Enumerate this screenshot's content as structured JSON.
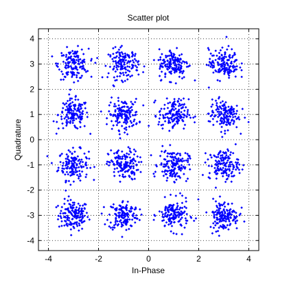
{
  "chart_data": {
    "type": "scatter",
    "title": "Scatter plot",
    "xlabel": "In-Phase",
    "ylabel": "Quadrature",
    "xlim": [
      -4.4,
      4.4
    ],
    "ylim": [
      -4.4,
      4.4
    ],
    "xticks": [
      -4,
      -2,
      0,
      2,
      4
    ],
    "yticks": [
      -4,
      -3,
      -2,
      -1,
      0,
      1,
      2,
      3,
      4
    ],
    "grid": true,
    "grid_style": "dotted",
    "legend": "none",
    "series": [
      {
        "marker": "point",
        "color": "#0000FF",
        "constellation_centers_x": [
          -3,
          -1,
          1,
          3
        ],
        "constellation_centers_y": [
          -3,
          -1,
          1,
          3
        ],
        "approx_spread_std": 0.3,
        "points_per_cluster": 150
      }
    ]
  },
  "colors": {
    "data": "#0000FF",
    "axes": "#000000",
    "grid": "#000000",
    "background": "#ffffff"
  }
}
